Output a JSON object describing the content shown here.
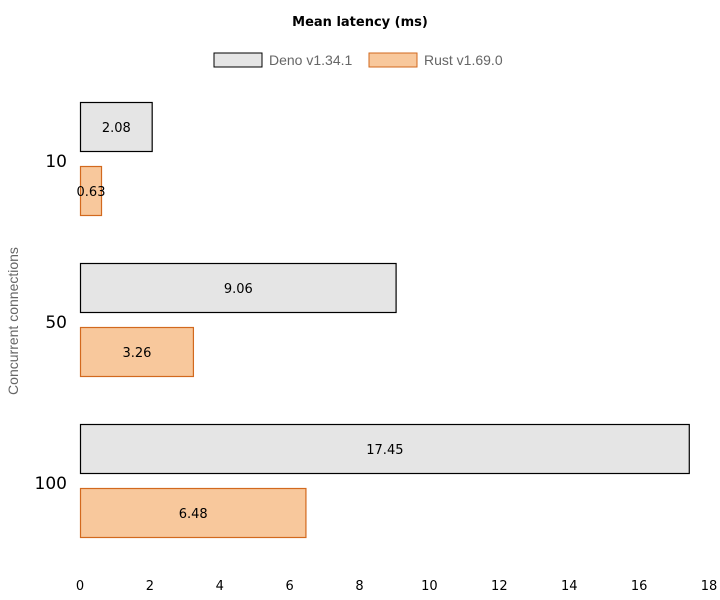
{
  "chart_data": {
    "type": "bar",
    "orientation": "horizontal",
    "title": "Mean latency (ms)",
    "ylabel": "Concurrent connections",
    "xlabel": "",
    "categories": [
      "10",
      "50",
      "100"
    ],
    "series": [
      {
        "name": "Deno v1.34.1",
        "values": [
          2.08,
          9.06,
          17.45
        ],
        "fill": "#e5e5e5",
        "stroke": "#000000"
      },
      {
        "name": "Rust v1.69.0",
        "values": [
          0.63,
          3.26,
          6.48
        ],
        "fill": "#f8c89c",
        "stroke": "#d2691e"
      }
    ],
    "xlim": [
      0,
      18
    ],
    "xticks": [
      0,
      2,
      4,
      6,
      8,
      10,
      12,
      14,
      16,
      18
    ],
    "legend_position": "top",
    "grid": false
  }
}
